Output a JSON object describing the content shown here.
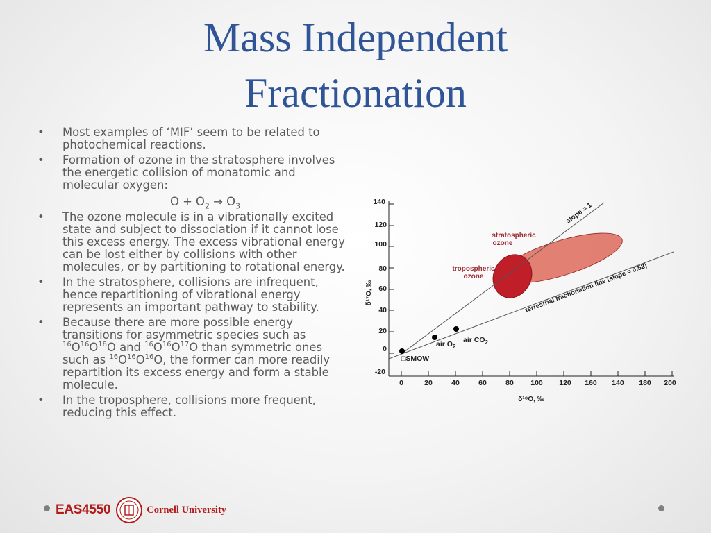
{
  "slide": {
    "title_line1": "Mass Independent",
    "title_line2": "Fractionation"
  },
  "bullets": {
    "b1": "Most examples of ‘MIF’ seem to be related to photochemical reactions.",
    "b2": "Formation of ozone in the stratosphere involves the energetic collision of monatomic and molecular oxygen:",
    "eq_a": "O + O",
    "eq_sub1": "2",
    "eq_arrow": " → O",
    "eq_sub2": "3",
    "b3": "The ozone molecule is in a vibrationally excited state and subject to dissociation if it cannot lose this excess energy. The excess vibrational energy can be lost either by collisions with other molecules, or by partitioning to rotational energy.",
    "b4": "In the stratosphere, collisions are infrequent, hence repartitioning of vibrational energy represents an important pathway to stability.",
    "b5_t1": "Because there are more possible energy transitions for asymmetric species such as ",
    "b5_sup1": "16",
    "b5_t2": "O",
    "b5_sup2": "16",
    "b5_t3": "O",
    "b5_sup3": "18",
    "b5_t4": "O and ",
    "b5_sup4": "16",
    "b5_t5": "O",
    "b5_sup5": "16",
    "b5_t6": "O",
    "b5_sup6": "17",
    "b5_t7": "O than symmetric ones such as ",
    "b5_sup7": "16",
    "b5_t8": "O",
    "b5_sup8": "16",
    "b5_t9": "O",
    "b5_sup9": "16",
    "b5_t10": "O, the former can more readily repartition its excess energy and form a stable molecule.",
    "b6": "In the troposphere, collisions more frequent, reducing this effect.",
    "bullet_char": "•"
  },
  "chart_data": {
    "type": "scatter",
    "title": "",
    "xlabel": "δ¹⁸O, ‰",
    "ylabel": "δ¹⁷O, ‰",
    "x_ticks": [
      "0",
      "20",
      "40",
      "60",
      "80",
      "100",
      "120",
      "160",
      "140",
      "180",
      "200"
    ],
    "y_ticks": [
      "140",
      "120",
      "100",
      "80",
      "60",
      "40",
      "20",
      "0",
      "-20"
    ],
    "points": [
      {
        "label": "□SMOW"
      },
      {
        "label": "air O",
        "sub": "2"
      },
      {
        "label": "air CO",
        "sub": "2"
      }
    ],
    "lines": [
      {
        "label": "slope = 1"
      },
      {
        "label": "terrestrial fractionation line (slope = 0.52)"
      }
    ],
    "regions": [
      {
        "label_l1": "stratospheric",
        "label_l2": "ozone",
        "color": "#d9534f"
      },
      {
        "label_l1": "tropospheric",
        "label_l2": "ozone",
        "color": "#c0202a"
      }
    ]
  },
  "footer": {
    "course": "EAS4550",
    "university": "Cornell University",
    "accent_color": "#b31b1b"
  }
}
